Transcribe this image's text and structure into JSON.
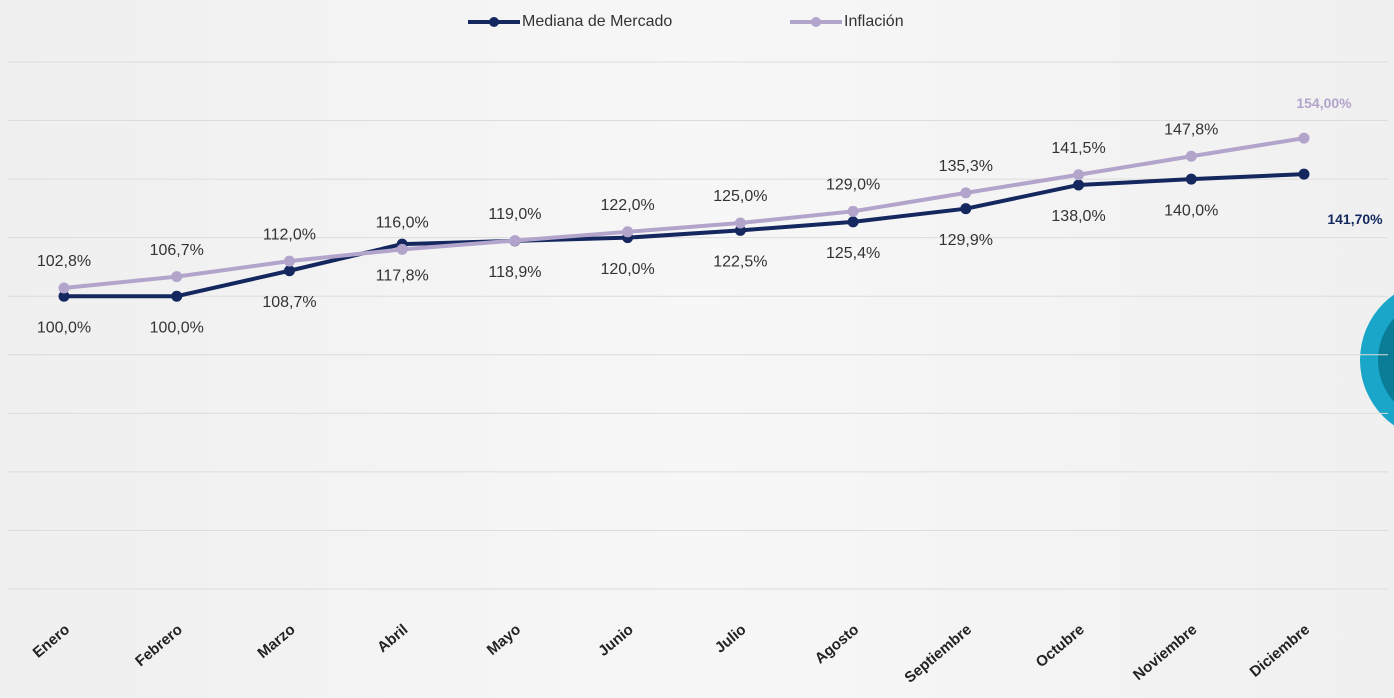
{
  "chart_data": {
    "type": "line",
    "categories": [
      "Enero",
      "Febrero",
      "Marzo",
      "Abril",
      "Mayo",
      "Junio",
      "Julio",
      "Agosto",
      "Septiembre",
      "Octubre",
      "Noviembre",
      "Diciembre"
    ],
    "series": [
      {
        "name": "Mediana de Mercado",
        "color": "#14285f",
        "values": [
          100.0,
          100.0,
          108.7,
          117.8,
          118.9,
          120.0,
          122.5,
          125.4,
          129.9,
          138.0,
          140.0,
          141.7
        ],
        "value_labels": [
          "100,0%",
          "100,0%",
          "108,7%",
          "117,8%",
          "118,9%",
          "120,0%",
          "122,5%",
          "125,4%",
          "129,9%",
          "138,0%",
          "140,0%",
          "141,70%"
        ]
      },
      {
        "name": "Inflación",
        "color": "#b3a4cc",
        "values": [
          102.8,
          106.7,
          112.0,
          116.0,
          119.0,
          122.0,
          125.0,
          129.0,
          135.3,
          141.5,
          147.8,
          154.0
        ],
        "value_labels": [
          "102,8%",
          "106,7%",
          "112,0%",
          "116,0%",
          "119,0%",
          "122,0%",
          "125,0%",
          "129,0%",
          "135,3%",
          "141,5%",
          "147,8%",
          "154,00%"
        ]
      }
    ],
    "ylim": [
      0,
      180
    ],
    "yticks": [
      0,
      20,
      40,
      60,
      80,
      100,
      120,
      140,
      160,
      180
    ],
    "grid": true,
    "legend": "top"
  }
}
